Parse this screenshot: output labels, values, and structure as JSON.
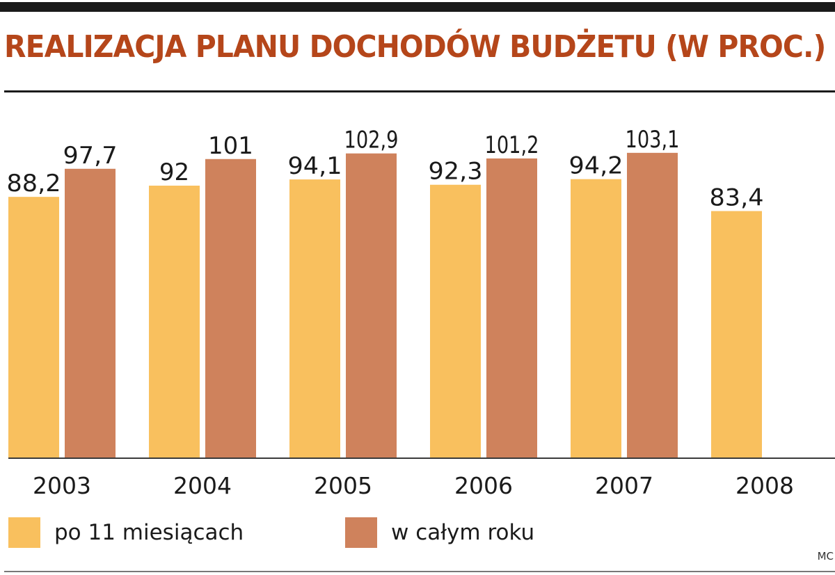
{
  "title": "REALIZACJA PLANU DOCHODÓW BUDŻETU (W PROC.)",
  "credit": "MC",
  "colors": {
    "series1": "#f9c05e",
    "series2": "#cf825c",
    "title": "#b5461a",
    "text": "#1a1a1a"
  },
  "legend": {
    "series1_label": "po 11 miesiącach",
    "series2_label": "w całym roku"
  },
  "chart_data": {
    "type": "bar",
    "title": "REALIZACJA PLANU DOCHODÓW BUDŻETU (W PROC.)",
    "categories": [
      "2003",
      "2004",
      "2005",
      "2006",
      "2007",
      "2008"
    ],
    "series": [
      {
        "name": "po 11 miesiącach",
        "values": [
          88.2,
          92,
          94.1,
          92.3,
          94.2,
          83.4
        ],
        "labels": [
          "88,2",
          "92",
          "94,1",
          "92,3",
          "94,2",
          "83,4"
        ]
      },
      {
        "name": "w całym roku",
        "values": [
          97.7,
          101,
          102.9,
          101.2,
          103.1,
          null
        ],
        "labels": [
          "97,7",
          "101",
          "102,9",
          "101,2",
          "103,1",
          ""
        ]
      }
    ],
    "xlabel": "",
    "ylabel": "",
    "ylim": [
      0,
      103.1
    ],
    "grid": false,
    "legend_position": "bottom"
  }
}
